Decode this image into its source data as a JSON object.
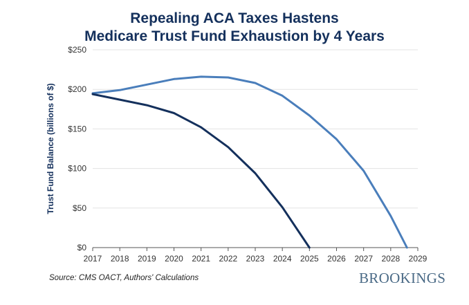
{
  "chart_data": {
    "type": "line",
    "title_lines": [
      "Repealing ACA Taxes Hastens",
      "Medicare Trust Fund Exhaustion by 4 Years"
    ],
    "ylabel": "Trust Fund Balance (billions of $)",
    "xlabel": "",
    "xlim": [
      2017,
      2029
    ],
    "ylim": [
      0,
      250
    ],
    "x_ticks": [
      "2017",
      "2018",
      "2019",
      "2020",
      "2021",
      "2022",
      "2023",
      "2024",
      "2025",
      "2026",
      "2027",
      "2028",
      "2029"
    ],
    "y_ticks": [
      "$0",
      "$50",
      "$100",
      "$150",
      "$200",
      "$250"
    ],
    "grid": true,
    "series": [
      {
        "color": "#4a7ebb",
        "points": [
          [
            2017,
            195
          ],
          [
            2018,
            199
          ],
          [
            2019,
            206
          ],
          [
            2020,
            213
          ],
          [
            2021,
            216
          ],
          [
            2022,
            215
          ],
          [
            2023,
            208
          ],
          [
            2024,
            192
          ],
          [
            2025,
            167
          ],
          [
            2026,
            137
          ],
          [
            2027,
            97
          ],
          [
            2028,
            40
          ],
          [
            2028.6,
            0
          ]
        ]
      },
      {
        "color": "#14305c",
        "points": [
          [
            2017,
            194
          ],
          [
            2018,
            187
          ],
          [
            2019,
            180
          ],
          [
            2020,
            170
          ],
          [
            2021,
            152
          ],
          [
            2022,
            127
          ],
          [
            2023,
            94
          ],
          [
            2024,
            51
          ],
          [
            2025,
            0
          ]
        ]
      }
    ]
  },
  "source": "Source: CMS OACT, Authors' Calculations",
  "brand": "BROOKINGS"
}
